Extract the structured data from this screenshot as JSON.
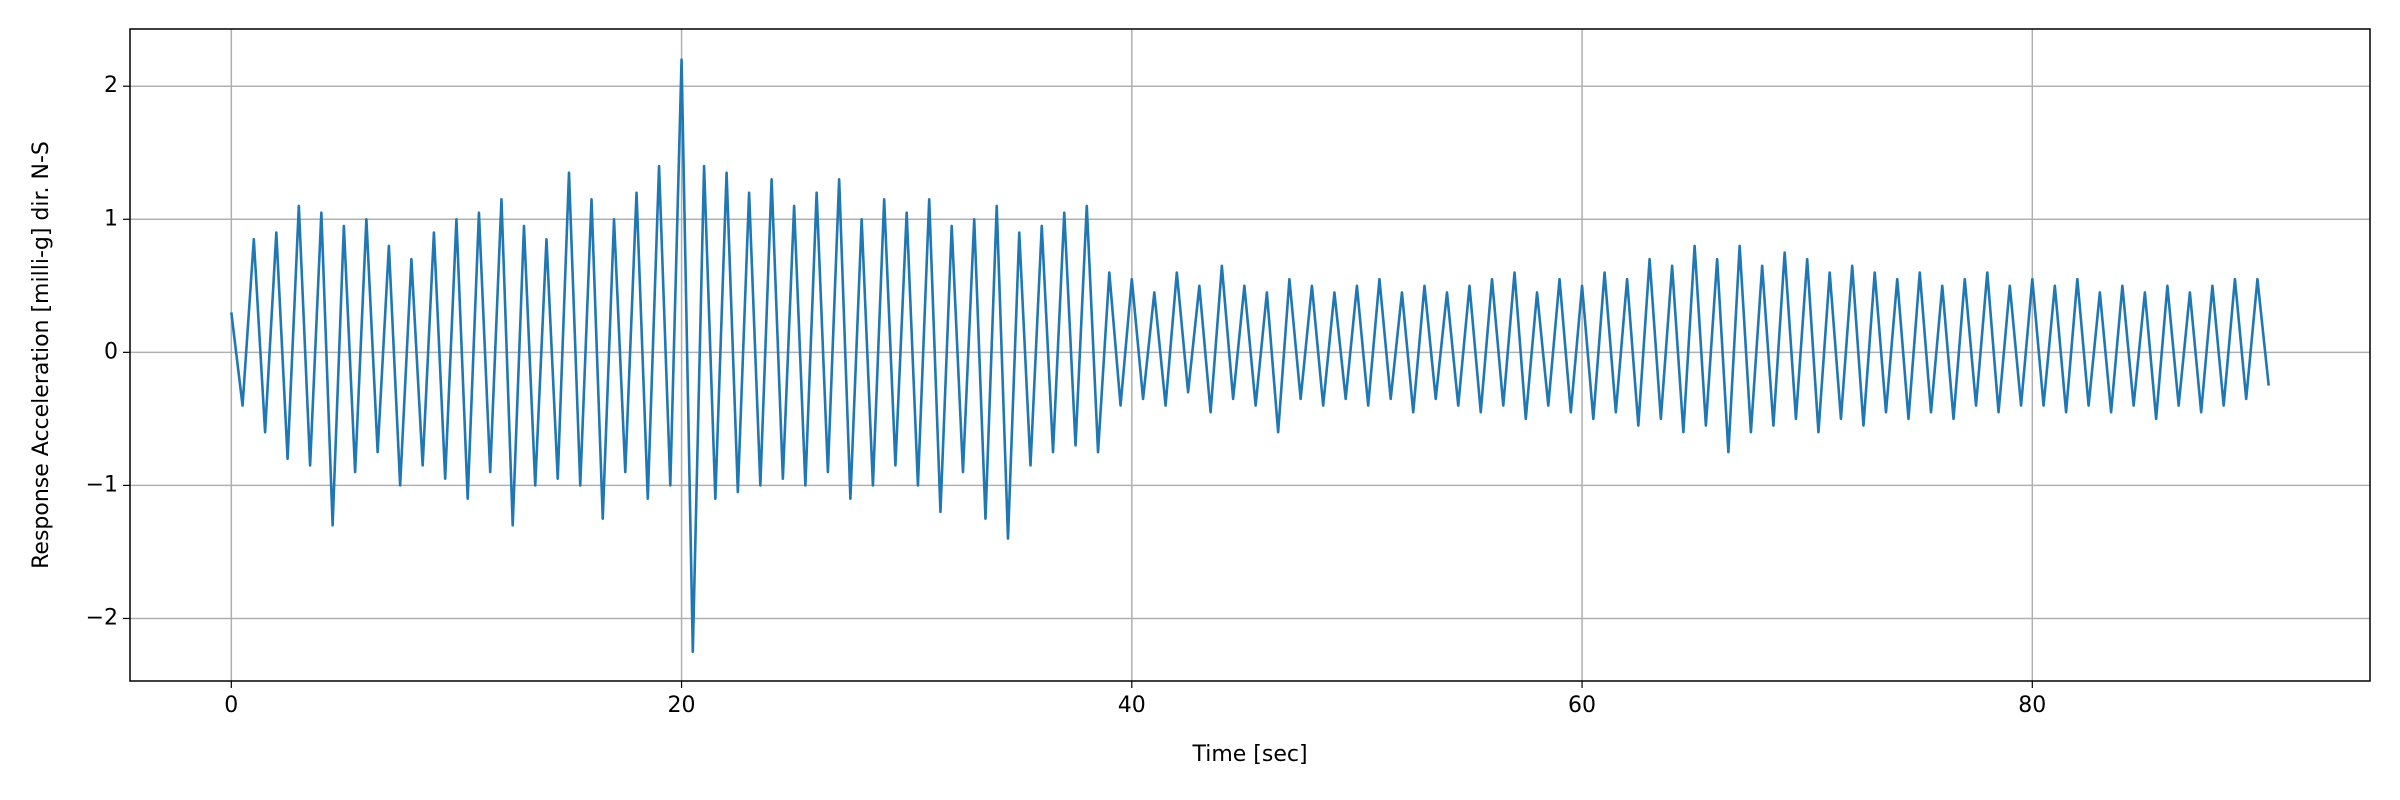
{
  "chart_data": {
    "type": "line",
    "xlabel": "Time [sec]",
    "ylabel": "Response Acceleration [milli-g] dir. N-S",
    "xlim": [
      -4.5,
      95
    ],
    "ylim": [
      -2.47,
      2.43
    ],
    "xticks": [
      0,
      20,
      40,
      60,
      80
    ],
    "yticks": [
      {
        "value": -2,
        "label": "−2"
      },
      {
        "value": -1,
        "label": "−1"
      },
      0,
      1,
      2
    ],
    "grid": true,
    "x": [
      0,
      0.5,
      1,
      1.5,
      2,
      2.5,
      3,
      3.5,
      4,
      4.5,
      5,
      5.5,
      6,
      6.5,
      7,
      7.5,
      8,
      8.5,
      9,
      9.5,
      10,
      10.5,
      11,
      11.5,
      12,
      12.5,
      13,
      13.5,
      14,
      14.5,
      15,
      15.5,
      16,
      16.5,
      17,
      17.5,
      18,
      18.5,
      19,
      19.5,
      20,
      20.5,
      21,
      21.5,
      22,
      22.5,
      23,
      23.5,
      24,
      24.5,
      25,
      25.5,
      26,
      26.5,
      27,
      27.5,
      28,
      28.5,
      29,
      29.5,
      30,
      30.5,
      31,
      31.5,
      32,
      32.5,
      33,
      33.5,
      34,
      34.5,
      35,
      35.5,
      36,
      36.5,
      37,
      37.5,
      38,
      38.5,
      39,
      39.5,
      40,
      40.5,
      41,
      41.5,
      42,
      42.5,
      43,
      43.5,
      44,
      44.5,
      45,
      45.5,
      46,
      46.5,
      47,
      47.5,
      48,
      48.5,
      49,
      49.5,
      50,
      50.5,
      51,
      51.5,
      52,
      52.5,
      53,
      53.5,
      54,
      54.5,
      55,
      55.5,
      56,
      56.5,
      57,
      57.5,
      58,
      58.5,
      59,
      59.5,
      60,
      60.5,
      61,
      61.5,
      62,
      62.5,
      63,
      63.5,
      64,
      64.5,
      65,
      65.5,
      66,
      66.5,
      67,
      67.5,
      68,
      68.5,
      69,
      69.5,
      70,
      70.5,
      71,
      71.5,
      72,
      72.5,
      73,
      73.5,
      74,
      74.5,
      75,
      75.5,
      76,
      76.5,
      77,
      77.5,
      78,
      78.5,
      79,
      79.5,
      80,
      80.5,
      81,
      81.5,
      82,
      82.5,
      83,
      83.5,
      84,
      84.5,
      85,
      85.5,
      86,
      86.5,
      87,
      87.5,
      88,
      88.5,
      89,
      89.5,
      90,
      90.5
    ],
    "series": [
      {
        "color": "#1f77b4",
        "values": [
          0.3,
          -0.4,
          0.85,
          -0.6,
          0.9,
          -0.8,
          1.1,
          -0.85,
          1.05,
          -1.3,
          0.95,
          -0.9,
          1.0,
          -0.75,
          0.8,
          -1.0,
          0.7,
          -0.85,
          0.9,
          -0.95,
          1.0,
          -1.1,
          1.05,
          -0.9,
          1.15,
          -1.3,
          0.95,
          -1.0,
          0.85,
          -0.95,
          1.35,
          -1.0,
          1.15,
          -1.25,
          1.0,
          -0.9,
          1.2,
          -1.1,
          1.4,
          -1.0,
          2.2,
          -2.25,
          1.4,
          -1.1,
          1.35,
          -1.05,
          1.2,
          -1.0,
          1.3,
          -0.95,
          1.1,
          -1.0,
          1.2,
          -0.9,
          1.3,
          -1.1,
          1.0,
          -1.0,
          1.15,
          -0.85,
          1.05,
          -1.0,
          1.15,
          -1.2,
          0.95,
          -0.9,
          1.0,
          -1.25,
          1.1,
          -1.4,
          0.9,
          -0.85,
          0.95,
          -0.75,
          1.05,
          -0.7,
          1.1,
          -0.75,
          0.6,
          -0.4,
          0.55,
          -0.35,
          0.45,
          -0.4,
          0.6,
          -0.3,
          0.5,
          -0.45,
          0.65,
          -0.35,
          0.5,
          -0.4,
          0.45,
          -0.6,
          0.55,
          -0.35,
          0.5,
          -0.4,
          0.45,
          -0.35,
          0.5,
          -0.4,
          0.55,
          -0.35,
          0.45,
          -0.45,
          0.5,
          -0.35,
          0.45,
          -0.4,
          0.5,
          -0.45,
          0.55,
          -0.4,
          0.6,
          -0.5,
          0.45,
          -0.4,
          0.55,
          -0.45,
          0.5,
          -0.5,
          0.6,
          -0.45,
          0.55,
          -0.55,
          0.7,
          -0.5,
          0.65,
          -0.6,
          0.8,
          -0.55,
          0.7,
          -0.75,
          0.8,
          -0.6,
          0.65,
          -0.55,
          0.75,
          -0.5,
          0.7,
          -0.6,
          0.6,
          -0.5,
          0.65,
          -0.55,
          0.6,
          -0.45,
          0.55,
          -0.5,
          0.6,
          -0.45,
          0.5,
          -0.5,
          0.55,
          -0.4,
          0.6,
          -0.45,
          0.5,
          -0.4,
          0.55,
          -0.4,
          0.5,
          -0.45,
          0.55,
          -0.4,
          0.45,
          -0.45,
          0.5,
          -0.4,
          0.45,
          -0.5,
          0.5,
          -0.4,
          0.45,
          -0.45,
          0.5,
          -0.4,
          0.55,
          -0.35,
          0.55,
          -0.25
        ]
      }
    ]
  }
}
